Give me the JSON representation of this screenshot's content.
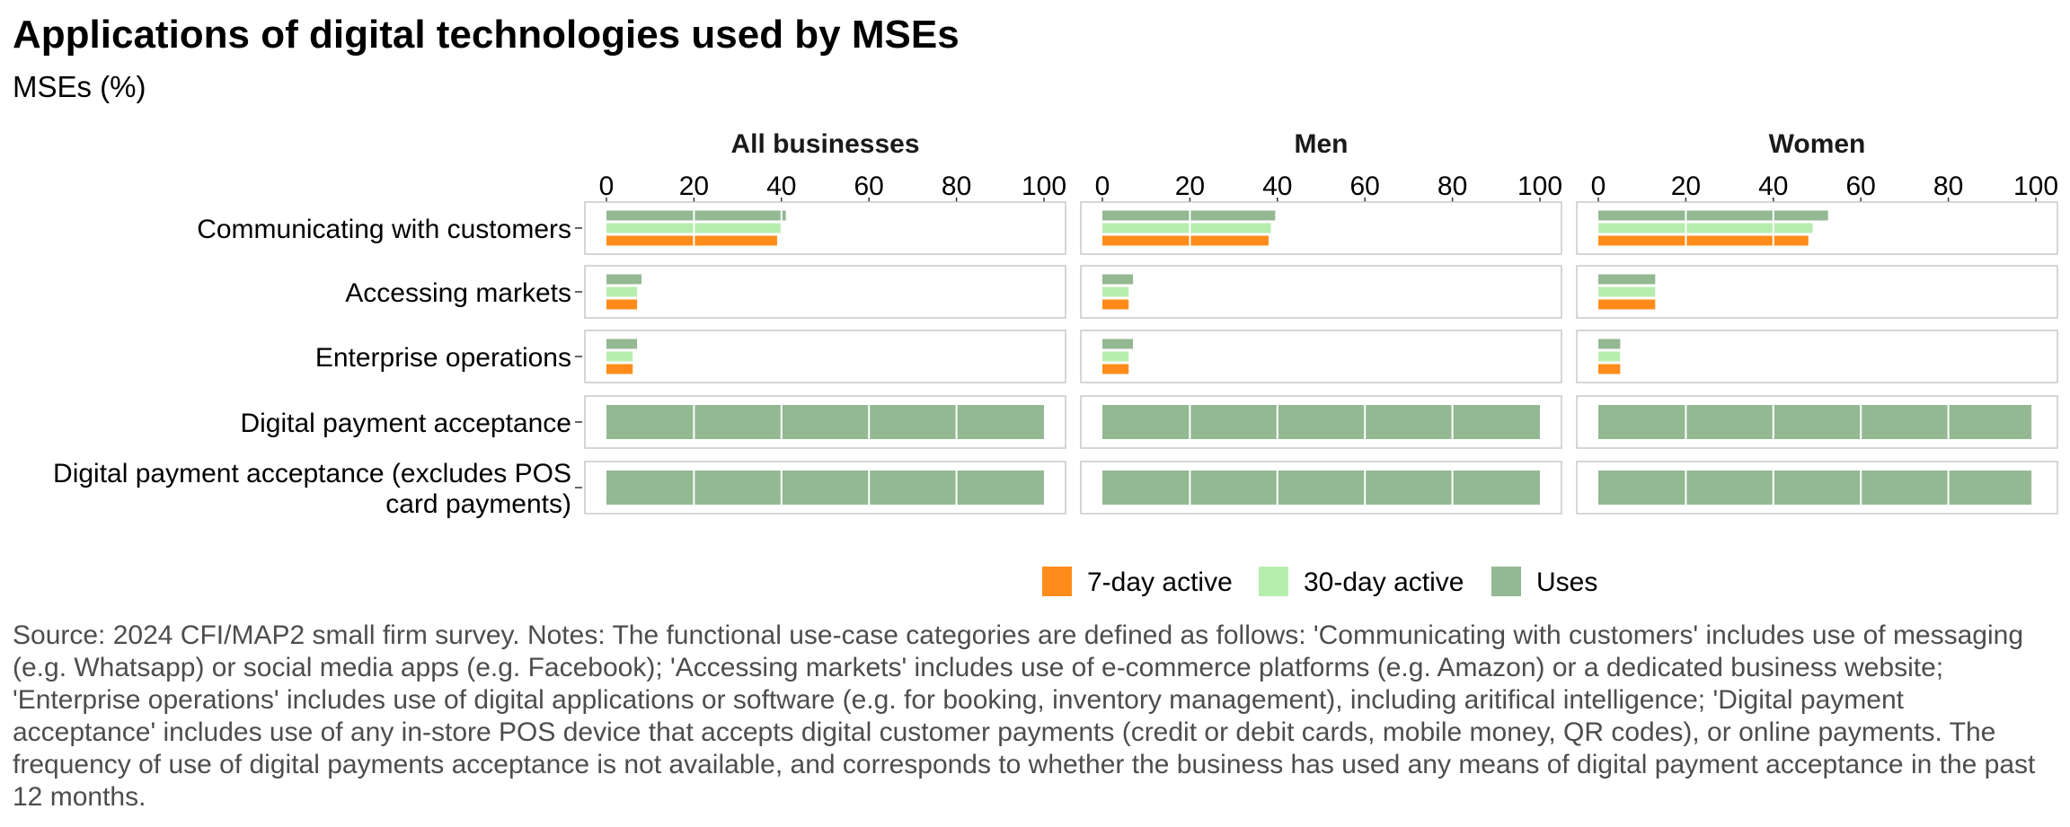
{
  "title": "Applications of digital technologies used by MSEs",
  "subtitle": "MSEs (%)",
  "source_note": "Source: 2024 CFI/MAP2 small firm survey. Notes: The functional use-case categories are defined as follows: 'Communicating with customers' includes use of messaging (e.g. Whatsapp) or social media apps (e.g. Facebook); 'Accessing markets' includes use of e-commerce platforms (e.g. Amazon) or a dedicated business website; 'Enterprise operations' includes use of digital applications or software (e.g. for booking, inventory management), including aritifical intelligence; 'Digital payment acceptance' includes use of any in-store POS device that accepts digital customer payments (credit or debit cards, mobile money, QR codes), or online payments. The frequency of use of digital payments acceptance is not available, and corresponds to whether the business has used any means of digital payment acceptance in the past 12 months.",
  "chart_data": {
    "type": "bar",
    "orientation": "horizontal",
    "facets": [
      "All businesses",
      "Men",
      "Women"
    ],
    "categories": [
      [
        "Communicating with customers"
      ],
      [
        "Accessing markets"
      ],
      [
        "Enterprise operations"
      ],
      [
        "Digital payment acceptance"
      ],
      [
        "Digital payment acceptance (excludes POS",
        "card payments)"
      ]
    ],
    "xlim": [
      0,
      100
    ],
    "xticks": [
      "0",
      "20",
      "40",
      "60",
      "80",
      "100"
    ],
    "grid": true,
    "legend_position": "bottom-right",
    "series": [
      {
        "name": "7-day active",
        "color": "#FF8C1A",
        "values": [
          [
            39,
            7,
            6,
            null,
            null
          ],
          [
            38,
            6,
            6,
            null,
            null
          ],
          [
            48,
            13,
            5,
            null,
            null
          ]
        ]
      },
      {
        "name": "30-day active",
        "color": "#B8EDB0",
        "values": [
          [
            40,
            7,
            6,
            null,
            null
          ],
          [
            38.5,
            6,
            6,
            null,
            null
          ],
          [
            49,
            13,
            5,
            null,
            null
          ]
        ]
      },
      {
        "name": "Uses",
        "color": "#93B892",
        "values": [
          [
            41,
            8,
            7,
            100,
            100
          ],
          [
            39.5,
            7,
            7,
            100,
            100
          ],
          [
            52.5,
            13,
            5,
            99,
            99
          ]
        ]
      }
    ]
  }
}
